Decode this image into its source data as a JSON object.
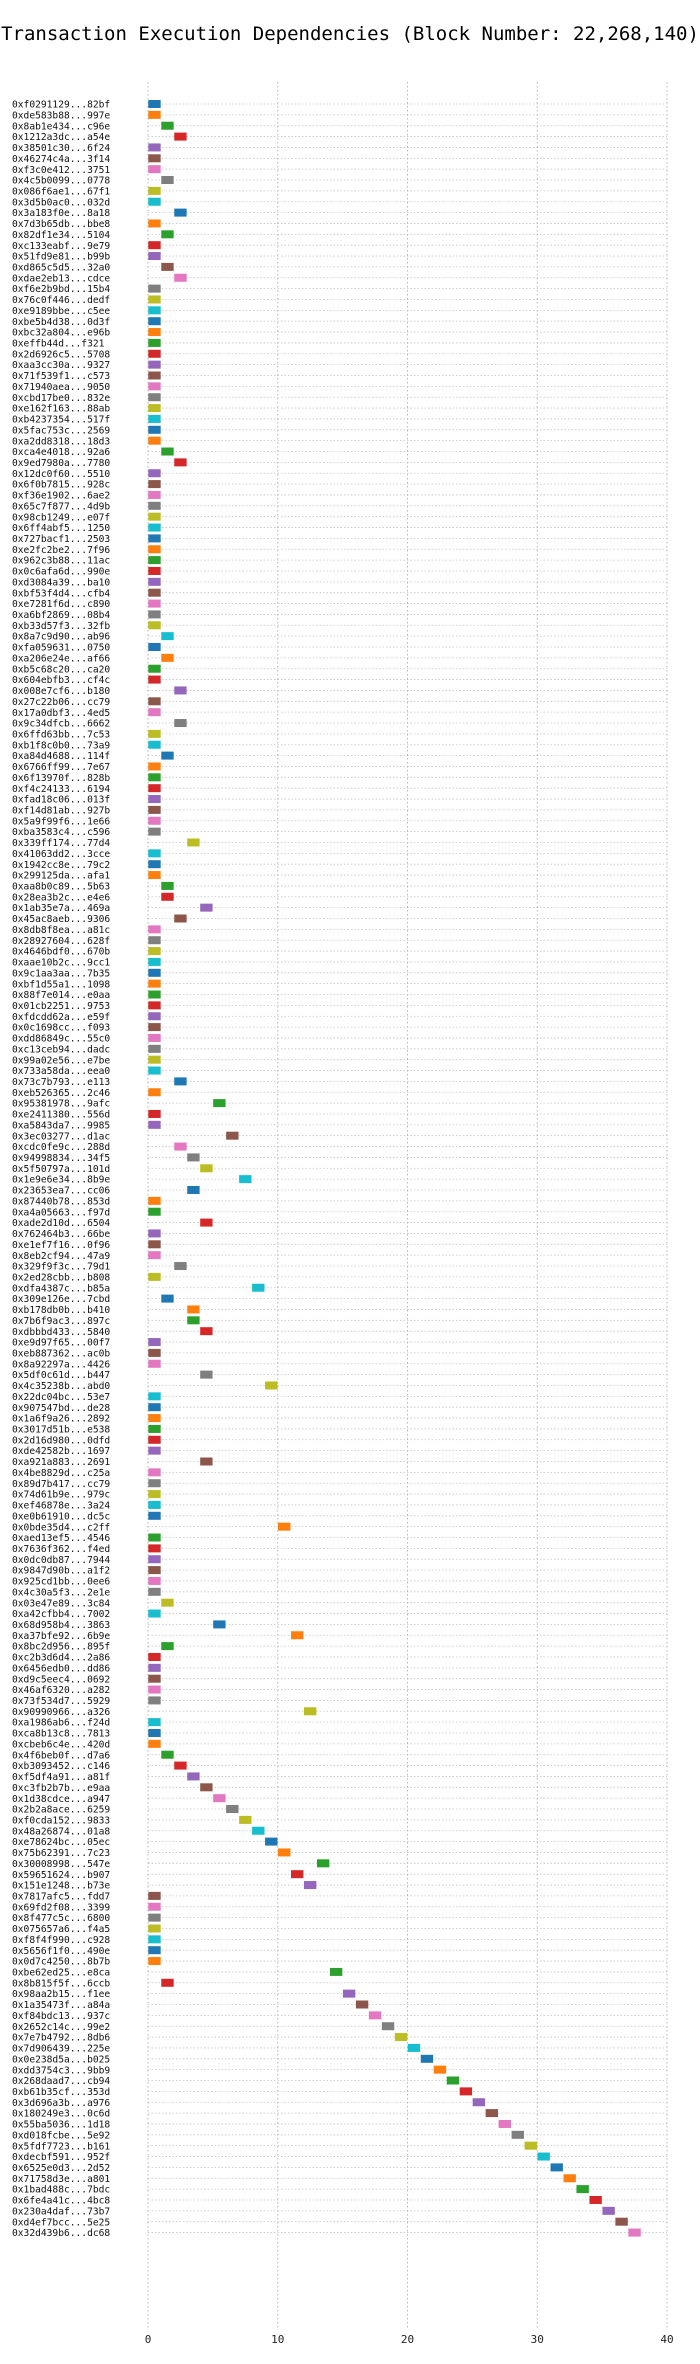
{
  "chart_data": {
    "type": "gantt",
    "title": "Transaction Execution Dependencies (Block Number: 22,268,140)",
    "xlim": [
      0,
      40
    ],
    "xticks": [
      0,
      10,
      20,
      30,
      40
    ],
    "palette": [
      "#1f77b4",
      "#ff7f0e",
      "#2ca02c",
      "#d62728",
      "#9467bd",
      "#8c564b",
      "#e377c2",
      "#7f7f7f",
      "#bcbd22",
      "#17becf"
    ],
    "bar_width": 1,
    "x_grid": "dotted",
    "y_grid": "dotted",
    "transactions": [
      "0xf0291129...82bf",
      "0xde583b88...997e",
      "0x8ab1e434...c96e",
      "0x1212a3dc...a54e",
      "0x38501c30...6f24",
      "0x46274c4a...3f14",
      "0xf3c0e412...3751",
      "0x4c5b0099...0778",
      "0x086f6ae1...67f1",
      "0x3d5b0ac0...032d",
      "0x3a183f0e...8a18",
      "0x7d3b65db...bbe8",
      "0x82df1e34...5104",
      "0xc133eabf...9e79",
      "0x51fd9e81...b99b",
      "0xd865c5d5...32a0",
      "0xdae2eb13...cdce",
      "0xf6e2b9bd...15b4",
      "0x76c0f446...dedf",
      "0xe9189bbe...c5ee",
      "0xbe5b4d38...0d3f",
      "0xbc32a804...e96b",
      "0xeffb44d...f321",
      "0x2d6926c5...5708",
      "0xaa3cc30a...9327",
      "0x71f539f1...c573",
      "0x71940aea...9050",
      "0xcbd17be0...832e",
      "0xe162f163...88ab",
      "0xb4237354...517f",
      "0x5fac753c...2569",
      "0xa2dd8318...18d3",
      "0xca4e4018...92a6",
      "0x9ed7980a...7780",
      "0x12dc0f60...5510",
      "0x6f0b7815...928c",
      "0xf36e1902...6ae2",
      "0x65c7f877...4d9b",
      "0x98cb1249...e07f",
      "0x6ff4abf5...1250",
      "0x727bacf1...2503",
      "0xe2fc2be2...7f96",
      "0x962c3b88...11ac",
      "0x0c6afa6d...990e",
      "0xd3084a39...ba10",
      "0xbf53f4d4...cfb4",
      "0xe7281f6d...c890",
      "0xa6bf2869...08b4",
      "0xb33d57f3...32fb",
      "0x8a7c9d90...ab96",
      "0xfa059631...0750",
      "0xa206e24e...af66",
      "0xb5c68c20...ca20",
      "0x604ebfb3...cf4c",
      "0x008e7cf6...b180",
      "0x27c22b06...cc79",
      "0x17a0dbf3...4ed5",
      "0x9c34dfcb...6662",
      "0x6ffd63bb...7c53",
      "0xb1f8c0b0...73a9",
      "0xa84d4688...114f",
      "0x6766ff99...7e67",
      "0x6f13970f...828b",
      "0xf4c24133...6194",
      "0xfad18c06...013f",
      "0xf14d81ab...927b",
      "0x5a9f99f6...1e66",
      "0xba3583c4...c596",
      "0x339ff174...77d4",
      "0x41063dd2...3cce",
      "0x1942cc8e...79c2",
      "0x299125da...afa1",
      "0xaa8b0c89...5b63",
      "0x28ea3b2c...e4e6",
      "0x1ab35e7a...469a",
      "0x45ac8aeb...9306",
      "0x8db8f8ea...a81c",
      "0x28927604...628f",
      "0x4646bdf0...670b",
      "0xaae10b2c...9cc1",
      "0x9c1aa3aa...7b35",
      "0xbf1d55a1...1098",
      "0x88f7e014...e0aa",
      "0x01cb2251...9753",
      "0xfdcdd62a...e59f",
      "0x0c1698cc...f093",
      "0xdd86849c...55c0",
      "0xc13ceb94...dadc",
      "0x99a02e56...e7be",
      "0x733a58da...eea0",
      "0x73c7b793...e113",
      "0xeb526365...2c46",
      "0x95381978...9afc",
      "0xe2411380...556d",
      "0xa5843da7...9985",
      "0x3ec03277...d1ac",
      "0xcdc0fe9c...288d",
      "0x94998834...34f5",
      "0x5f50797a...101d",
      "0x1e9e6e34...8b9e",
      "0x23653ea7...cc06",
      "0x87440b78...853d",
      "0xa4a05663...f97d",
      "0xade2d10d...6504",
      "0x762464b3...66be",
      "0xe1ef7f16...0f96",
      "0x8eb2cf94...47a9",
      "0x329f9f3c...79d1",
      "0x2ed28cbb...b808",
      "0xdfa4387c...b85a",
      "0x309e126e...7cbd",
      "0xb178db0b...b410",
      "0x7b6f9ac3...897c",
      "0xdbbbd433...5840",
      "0xe9d97f65...00f7",
      "0xeb887362...ac0b",
      "0x8a92297a...4426",
      "0x5df0c61d...b447",
      "0x4c35238b...abd0",
      "0x22dc04bc...53e7",
      "0x907547bd...de28",
      "0x1a6f9a26...2892",
      "0x3017d51b...e538",
      "0x2d16d980...0dfd",
      "0xde42582b...1697",
      "0xa921a883...2691",
      "0x4be8829d...c25a",
      "0x89d7b417...cc79",
      "0x74d61b9e...979c",
      "0xef46878e...3a24",
      "0xe0b61910...dc5c",
      "0x0bde35d4...c2ff",
      "0xaed13ef5...4546",
      "0x7636f362...f4ed",
      "0x0dc0db87...7944",
      "0x9847d90b...a1f2",
      "0x925cd1bb...0ee6",
      "0x4c30a5f3...2e1e",
      "0x03e47e89...3c84",
      "0xa42cfbb4...7002",
      "0x68d958b4...3863",
      "0xa37bfe92...6b9e",
      "0x8bc2d956...895f",
      "0xc2b3d6d4...2a86",
      "0x6456edb0...dd86",
      "0xd9c5eec4...0692",
      "0x46af6320...a282",
      "0x73f534d7...5929",
      "0x90990966...a326",
      "0xa1986ab6...f24d",
      "0xca8b13c8...7813",
      "0xcbeb6c4e...420d",
      "0x4f6beb0f...d7a6",
      "0xb3093452...c146",
      "0xf5df4a91...a81f",
      "0xc3fb2b7b...e9aa",
      "0x1d38cdce...a947",
      "0x2b2a8ace...6259",
      "0xf0cda152...9833",
      "0x48a26874...01a8",
      "0xe78624bc...05ec",
      "0x75b62391...7c23",
      "0x30008998...547e",
      "0x59651624...b907",
      "0x151e1248...b73e",
      "0x7817afc5...fdd7",
      "0x69fd2f08...3399",
      "0x8f477c5c...6800",
      "0x075657a6...f4a5",
      "0xf8f4f990...c928",
      "0x5656f1f0...490e",
      "0x0d7c4250...8b7b",
      "0xbe62ed25...e8ca",
      "0x8b815f5f...6ccb",
      "0x98aa2b15...f1ee",
      "0x1a35473f...a84a",
      "0xf84bdc13...937c",
      "0x2652c14c...99e2",
      "0x7e7b4792...8db6",
      "0x7d906439...225e",
      "0x0e238d5a...b025",
      "0xdd3754c3...9bb9",
      "0x268daad7...cb94",
      "0xb61b35cf...353d",
      "0x3d696a3b...a976",
      "0x180249e3...0c6d",
      "0x55ba5036...1d18",
      "0xd018fcbe...5e92",
      "0x5fdf7723...b161",
      "0xdecbf591...952f",
      "0x6525e0d3...2d52",
      "0x71758d3e...a801",
      "0x1bad488c...7bdc",
      "0x6fe4a41c...4bc8",
      "0x230a4daf...73b7",
      "0xd4ef7bcc...5e25",
      "0x32d439b6...dc68"
    ],
    "start_times": [
      0,
      0,
      1,
      2,
      0,
      0,
      0,
      1,
      0,
      0,
      2,
      0,
      1,
      0,
      0,
      1,
      2,
      0,
      0,
      0,
      0,
      0,
      0,
      0,
      0,
      0,
      0,
      0,
      0,
      0,
      0,
      0,
      1,
      2,
      0,
      0,
      0,
      0,
      0,
      0,
      0,
      0,
      0,
      0,
      0,
      0,
      0,
      0,
      0,
      1,
      0,
      1,
      0,
      0,
      2,
      0,
      0,
      2,
      0,
      0,
      1,
      0,
      0,
      0,
      0,
      0,
      0,
      0,
      3,
      0,
      0,
      0,
      1,
      1,
      4,
      2,
      0,
      0,
      0,
      0,
      0,
      0,
      0,
      0,
      0,
      0,
      0,
      0,
      0,
      0,
      2,
      0,
      5,
      0,
      0,
      6,
      2,
      3,
      4,
      7,
      3,
      0,
      0,
      4,
      0,
      0,
      0,
      2,
      0,
      8,
      1,
      3,
      3,
      4,
      0,
      0,
      0,
      4,
      9,
      0,
      0,
      0,
      0,
      0,
      0,
      4,
      0,
      0,
      0,
      0,
      0,
      10,
      0,
      0,
      0,
      0,
      0,
      0,
      1,
      0,
      5,
      11,
      1,
      0,
      0,
      0,
      0,
      0,
      12,
      0,
      0,
      0,
      1,
      2,
      3,
      4,
      5,
      6,
      7,
      8,
      9,
      10,
      13,
      11,
      12,
      0,
      0,
      0,
      0,
      0,
      0,
      0,
      14,
      1,
      15,
      16,
      17,
      18,
      19,
      20,
      21,
      22,
      23,
      24,
      25,
      26,
      27,
      28,
      29,
      30,
      31,
      32,
      33,
      34,
      35,
      36,
      37
    ]
  }
}
